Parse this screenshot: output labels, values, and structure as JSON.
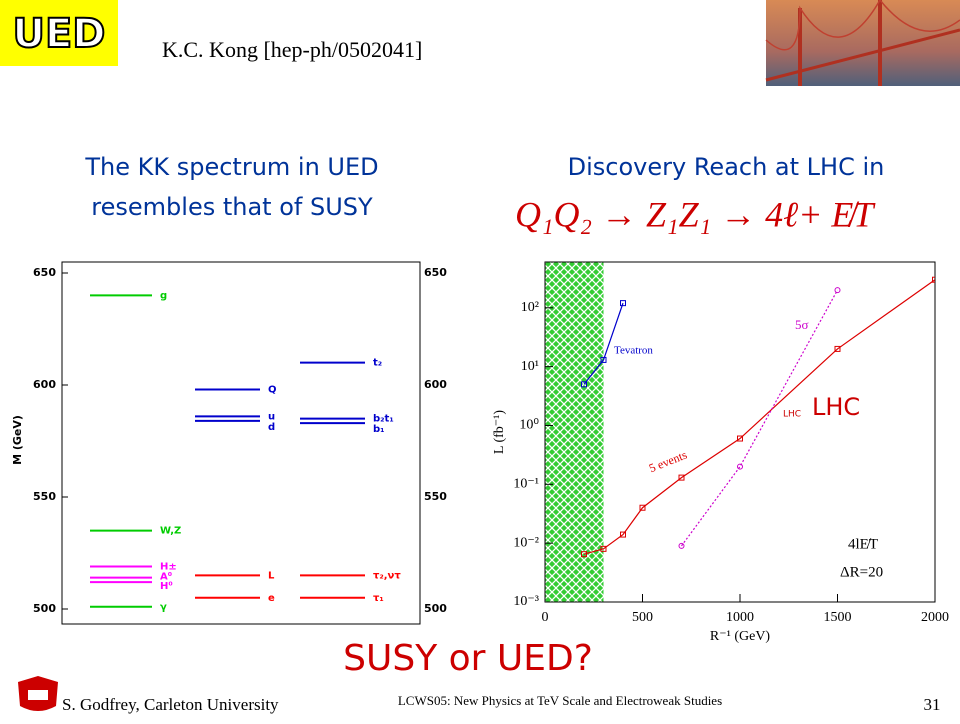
{
  "header": {
    "badge": "UED",
    "reference": "K.C. Kong [hep-ph/0502041]"
  },
  "left_heading": [
    "The KK spectrum in UED",
    "resembles that of SUSY"
  ],
  "right_heading": "Discovery Reach at LHC in",
  "process": "Q₁Q₂ → Z₁Z₁ → 4ℓ+ E̸T",
  "question": "SUSY or UED?",
  "footer": {
    "author": "S. Godfrey, Carleton University",
    "conference": "LCWS05: New Physics at TeV Scale and Electroweak Studies",
    "page": "31"
  },
  "chart_data": [
    {
      "type": "levels",
      "ylabel": "M (GeV)",
      "ylim": [
        500,
        650
      ],
      "yticks": [
        500,
        550,
        600,
        650
      ],
      "columns": [
        {
          "labels": [
            "g",
            "W,Z",
            "H±",
            "A⁰",
            "H⁰",
            "γ"
          ],
          "values": [
            640,
            535,
            519,
            514,
            512,
            501
          ],
          "colors": [
            "#00cc00",
            "#00cc00",
            "#ff00ff",
            "#ff00ff",
            "#ff00ff",
            "#00cc00"
          ]
        },
        {
          "labels": [
            "Q",
            "u",
            "d",
            "L",
            "e"
          ],
          "values": [
            598,
            586,
            584,
            515,
            505
          ],
          "colors": [
            "#0000cc",
            "#0000cc",
            "#0000cc",
            "#ff0000",
            "#ff0000"
          ]
        },
        {
          "labels": [
            "t₂",
            "b₂t₁",
            "b₁",
            "τ₂,ντ",
            "τ₁"
          ],
          "values": [
            610,
            585,
            583,
            515,
            505
          ],
          "colors": [
            "#0000cc",
            "#0000cc",
            "#0000cc",
            "#ff0000",
            "#ff0000"
          ]
        }
      ]
    },
    {
      "type": "line",
      "xlabel": "R⁻¹ (GeV)",
      "ylabel": "L (fb⁻¹)",
      "log_y": true,
      "xlim": [
        0,
        2000
      ],
      "xticks": [
        0,
        500,
        1000,
        1500,
        2000
      ],
      "ylim": [
        0.001,
        600
      ],
      "yticks": [
        {
          "value": 0.001,
          "label": "10⁻³"
        },
        {
          "value": 0.01,
          "label": "10⁻²"
        },
        {
          "value": 0.1,
          "label": "10⁻¹"
        },
        {
          "value": 1,
          "label": "10⁰"
        },
        {
          "value": 10,
          "label": "10¹"
        },
        {
          "value": 100,
          "label": "10²"
        }
      ],
      "shaded_xrange": [
        0,
        300
      ],
      "series": [
        {
          "name": "Tevatron",
          "color": "#0000cc",
          "x": [
            200,
            300,
            400
          ],
          "values": [
            5,
            13,
            120
          ]
        },
        {
          "name": "5 events",
          "color": "#dd0000",
          "x": [
            200,
            300,
            400,
            500,
            700,
            1000,
            1500,
            2000
          ],
          "values": [
            0.0065,
            0.008,
            0.014,
            0.04,
            0.13,
            0.6,
            20,
            300
          ]
        },
        {
          "name": "5σ",
          "color": "#cc00cc",
          "linestyle": "dotted",
          "x": [
            700,
            1000,
            1500
          ],
          "values": [
            0.009,
            0.2,
            200
          ]
        }
      ],
      "annotations": [
        "LHC",
        "LHC",
        "4lE̸T",
        "ΔR=20"
      ]
    }
  ]
}
